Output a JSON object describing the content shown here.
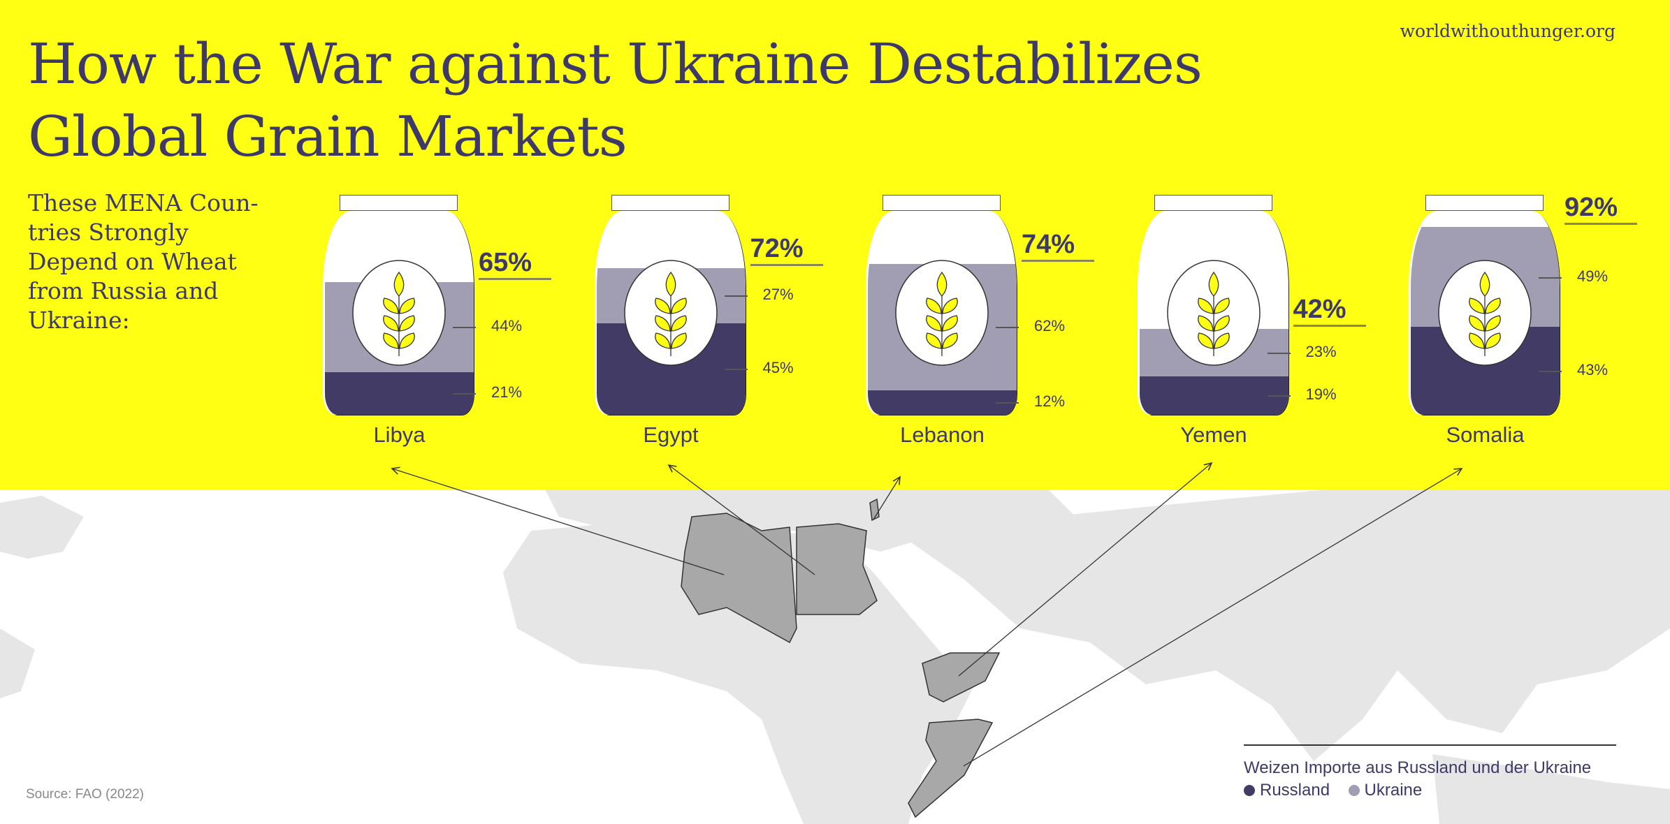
{
  "header": {
    "title_line1": "How the War against Ukraine Destabilizes",
    "title_line2": "Global Grain Markets",
    "website": "worldwithouthunger.org",
    "subtitle": "These MENA Coun­tries Strongly Depend on Wheat from Rus­sia and Ukraine:"
  },
  "colors": {
    "background": "#ffff14",
    "russia": "#413b66",
    "ukraine": "#a19db2",
    "text": "#3d3968",
    "map_land": "#e6e6e6",
    "map_highlight": "#a8a8a8"
  },
  "countries": [
    {
      "name": "Libya",
      "total": "65%",
      "ukraine": "44%",
      "russia": "21%",
      "total_value": 65,
      "ukraine_value": 44,
      "russia_value": 21
    },
    {
      "name": "Egypt",
      "total": "72%",
      "ukraine": "27%",
      "russia": "45%",
      "total_value": 72,
      "ukraine_value": 27,
      "russia_value": 45
    },
    {
      "name": "Lebanon",
      "total": "74%",
      "ukraine": "62%",
      "russia": "12%",
      "total_value": 74,
      "ukraine_value": 62,
      "russia_value": 12
    },
    {
      "name": "Yemen",
      "total": "42%",
      "ukraine": "23%",
      "russia": "19%",
      "total_value": 42,
      "ukraine_value": 23,
      "russia_value": 19
    },
    {
      "name": "Somalia",
      "total": "92%",
      "ukraine": "49%",
      "russia": "43%",
      "total_value": 92,
      "ukraine_value": 49,
      "russia_value": 43
    }
  ],
  "legend": {
    "title": "Weizen Importe aus Russland und der Ukraine",
    "russia": "Russland",
    "ukraine": "Ukraine"
  },
  "source": "Source: FAO (2022)"
}
